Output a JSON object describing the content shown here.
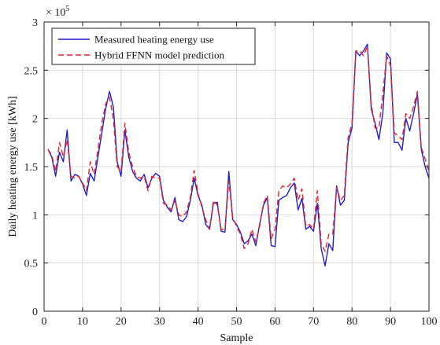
{
  "chart_data": {
    "type": "line",
    "xlabel": "Sample",
    "ylabel": "Daily heating energy use [kWh]",
    "y_exponent_label": "× 10",
    "y_exponent_power": "5",
    "xlim": [
      0,
      100
    ],
    "ylim": [
      0,
      300000
    ],
    "x_ticks": [
      "0",
      "10",
      "20",
      "30",
      "40",
      "50",
      "60",
      "70",
      "80",
      "90",
      "100"
    ],
    "y_ticks": [
      "0",
      "0.5",
      "1",
      "1.5",
      "2",
      "2.5",
      "3"
    ],
    "grid": true,
    "legend_position": "top-left",
    "x": [
      1,
      2,
      3,
      4,
      5,
      6,
      7,
      8,
      9,
      10,
      11,
      12,
      13,
      14,
      15,
      16,
      17,
      18,
      19,
      20,
      21,
      22,
      23,
      24,
      25,
      26,
      27,
      28,
      29,
      30,
      31,
      32,
      33,
      34,
      35,
      36,
      37,
      38,
      39,
      40,
      41,
      42,
      43,
      44,
      45,
      46,
      47,
      48,
      49,
      50,
      51,
      52,
      53,
      54,
      55,
      56,
      57,
      58,
      59,
      60,
      61,
      62,
      63,
      64,
      65,
      66,
      67,
      68,
      69,
      70,
      71,
      72,
      73,
      74,
      75,
      76,
      77,
      78,
      79,
      80,
      81,
      82,
      83,
      84,
      85,
      86,
      87,
      88,
      89,
      90,
      91,
      92,
      93,
      94,
      95,
      96,
      97,
      98,
      99,
      100
    ],
    "series": [
      {
        "name": "Measured heating energy use",
        "color": "#1f1fcc",
        "dash": "solid",
        "values": [
          168000,
          160000,
          140000,
          165000,
          155000,
          188000,
          135000,
          142000,
          140000,
          132000,
          120000,
          143000,
          135000,
          160000,
          185000,
          210000,
          228000,
          212000,
          155000,
          140000,
          188000,
          160000,
          145000,
          138000,
          135000,
          142000,
          128000,
          138000,
          143000,
          140000,
          115000,
          108000,
          103000,
          118000,
          95000,
          93000,
          98000,
          115000,
          138000,
          120000,
          110000,
          90000,
          85000,
          112000,
          113000,
          83000,
          82000,
          145000,
          95000,
          90000,
          82000,
          70000,
          73000,
          80000,
          68000,
          90000,
          110000,
          118000,
          68000,
          67000,
          115000,
          118000,
          120000,
          128000,
          133000,
          105000,
          117000,
          85000,
          88000,
          83000,
          112000,
          65000,
          47000,
          70000,
          63000,
          130000,
          110000,
          115000,
          175000,
          190000,
          270000,
          265000,
          270000,
          277000,
          210000,
          195000,
          178000,
          205000,
          268000,
          262000,
          175000,
          175000,
          167000,
          200000,
          187000,
          205000,
          225000,
          168000,
          150000,
          138000
        ]
      },
      {
        "name": "Hybrid FFNN model prediction",
        "color": "#e8202a",
        "dash": "dashed",
        "values": [
          168000,
          162000,
          145000,
          175000,
          160000,
          178000,
          140000,
          138000,
          140000,
          133000,
          125000,
          155000,
          142000,
          168000,
          195000,
          215000,
          222000,
          200000,
          150000,
          145000,
          195000,
          165000,
          150000,
          140000,
          138000,
          140000,
          125000,
          140000,
          138000,
          138000,
          112000,
          110000,
          105000,
          115000,
          100000,
          98000,
          103000,
          118000,
          146000,
          122000,
          108000,
          95000,
          85000,
          115000,
          110000,
          85000,
          85000,
          135000,
          98000,
          88000,
          80000,
          65000,
          70000,
          85000,
          72000,
          88000,
          112000,
          120000,
          75000,
          85000,
          125000,
          130000,
          128000,
          132000,
          138000,
          115000,
          127000,
          88000,
          90000,
          85000,
          125000,
          70000,
          62000,
          80000,
          80000,
          128000,
          115000,
          120000,
          180000,
          195000,
          270000,
          270000,
          265000,
          275000,
          215000,
          190000,
          190000,
          225000,
          265000,
          255000,
          185000,
          182000,
          178000,
          205000,
          200000,
          212000,
          228000,
          170000,
          158000,
          145000
        ]
      }
    ]
  }
}
